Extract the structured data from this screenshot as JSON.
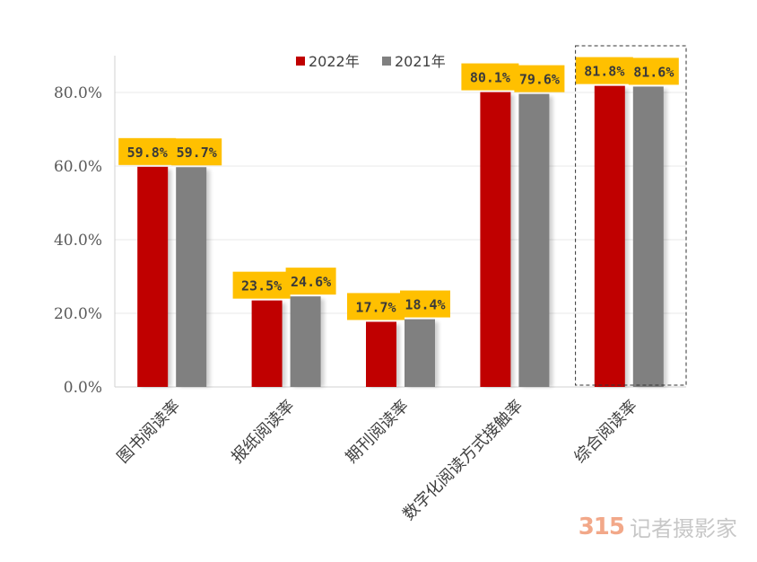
{
  "chart_data": {
    "type": "bar",
    "categories": [
      "图书阅读率",
      "报纸阅读率",
      "期刊阅读率",
      "数字化阅读方式接触率",
      "综合阅读率"
    ],
    "series": [
      {
        "name": "2022年",
        "values": [
          59.8,
          23.5,
          17.7,
          80.1,
          81.8
        ],
        "color": "#c00000",
        "labels": [
          "59.8%",
          "23.5%",
          "17.7%",
          "80.1%",
          "81.8%"
        ]
      },
      {
        "name": "2021年",
        "values": [
          59.7,
          24.6,
          18.4,
          79.6,
          81.6
        ],
        "color": "#808080",
        "labels": [
          "59.7%",
          "24.6%",
          "18.4%",
          "79.6%",
          "81.6%"
        ]
      }
    ],
    "ylim": [
      0,
      90
    ],
    "yticks": [
      0,
      20,
      40,
      60,
      80
    ],
    "ytick_labels": [
      "0.0%",
      "20.0%",
      "40.0%",
      "60.0%",
      "80.0%"
    ],
    "legend_position": "top",
    "grid": true,
    "label_box_color": "#ffc000",
    "highlight_category": "综合阅读率"
  },
  "watermark": {
    "logo": "315",
    "text": "记者摄影家"
  }
}
